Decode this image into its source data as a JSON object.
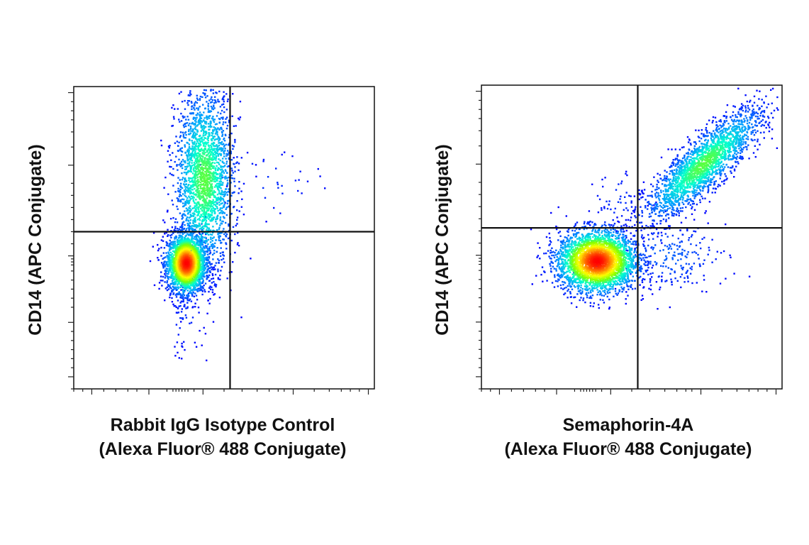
{
  "chart_data": [
    {
      "type": "scatter",
      "title": "",
      "xlabel": [
        "Rabbit IgG Isotype Control",
        "(Alexa Fluor® 488 Conjugate)"
      ],
      "ylabel": "CD14 (APC Conjugate)",
      "xscale": "biexponential",
      "yscale": "biexponential",
      "xlim": [
        0,
        1
      ],
      "ylim": [
        0,
        1
      ],
      "grid": false,
      "legend": "none",
      "quadrant_gate": {
        "x": 0.52,
        "y": 0.52
      },
      "populations": [
        {
          "name": "CD14- / isotype-",
          "cx": 0.375,
          "cy": 0.415,
          "sx": 0.032,
          "sy": 0.048,
          "n": 2600,
          "peak_density": 1.0
        },
        {
          "name": "CD14+ / isotype-",
          "cx": 0.435,
          "cy": 0.69,
          "sx": 0.048,
          "sy": 0.15,
          "n": 2300,
          "peak_density": 0.45
        },
        {
          "name": "CD14+ / isotype+ (sparse)",
          "cx": 0.62,
          "cy": 0.68,
          "sx": 0.11,
          "sy": 0.06,
          "n": 40,
          "peak_density": 0.05
        },
        {
          "name": "CD14- / isotype- tail",
          "cx": 0.37,
          "cy": 0.26,
          "sx": 0.03,
          "sy": 0.08,
          "n": 70,
          "peak_density": 0.05
        }
      ]
    },
    {
      "type": "scatter",
      "title": "",
      "xlabel": [
        "Semaphorin-4A",
        "(Alexa Fluor® 488 Conjugate)"
      ],
      "ylabel": "CD14 (APC Conjugate)",
      "xscale": "biexponential",
      "yscale": "biexponential",
      "xlim": [
        0,
        1
      ],
      "ylim": [
        0,
        1
      ],
      "grid": false,
      "legend": "none",
      "quadrant_gate": {
        "x": 0.52,
        "y": 0.53
      },
      "populations": [
        {
          "name": "CD14- / Semaphorin-4A-",
          "cx": 0.385,
          "cy": 0.42,
          "sx": 0.065,
          "sy": 0.05,
          "n": 3200,
          "peak_density": 1.0
        },
        {
          "name": "CD14+ / Semaphorin-4A+",
          "cx": 0.74,
          "cy": 0.74,
          "sx": 0.095,
          "sy": 0.09,
          "n": 2200,
          "peak_density": 0.45,
          "correlation": 0.85
        },
        {
          "name": "CD14- / Semaphorin-4A+",
          "cx": 0.62,
          "cy": 0.44,
          "sx": 0.1,
          "sy": 0.06,
          "n": 250,
          "peak_density": 0.1
        },
        {
          "name": "CD14+ / Semaphorin-4A- (sparse)",
          "cx": 0.45,
          "cy": 0.62,
          "sx": 0.05,
          "sy": 0.06,
          "n": 60,
          "peak_density": 0.05
        }
      ]
    }
  ],
  "colors": {
    "density_scale": [
      "#0000ff",
      "#00a0ff",
      "#00ffd0",
      "#80ff00",
      "#ffff00",
      "#ff8000",
      "#ff0000"
    ],
    "frame": "#111111",
    "gate": "#111111"
  }
}
